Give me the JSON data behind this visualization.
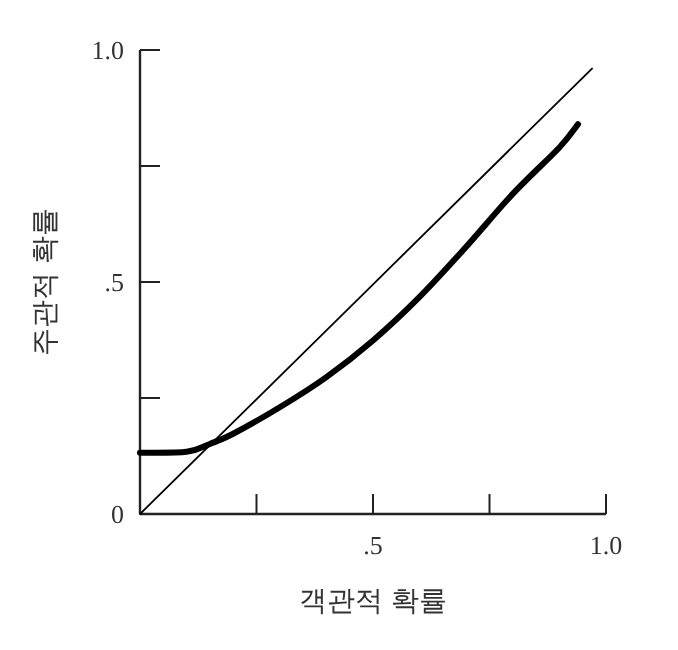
{
  "chart_data": {
    "type": "line",
    "xlabel": "객관적 확률",
    "ylabel": "주관적 확률",
    "xlim": [
      0,
      1.0
    ],
    "ylim": [
      0,
      1.0
    ],
    "xticks": [
      {
        "value": 0.25,
        "label": null
      },
      {
        "value": 0.5,
        "label": ".5"
      },
      {
        "value": 0.75,
        "label": null
      },
      {
        "value": 1.0,
        "label": "1.0"
      }
    ],
    "yticks": [
      {
        "value": 0,
        "label": "0"
      },
      {
        "value": 0.25,
        "label": null
      },
      {
        "value": 0.5,
        "label": ".5"
      },
      {
        "value": 0.75,
        "label": null
      },
      {
        "value": 1.0,
        "label": "1.0"
      }
    ],
    "grid": false,
    "marker": "none",
    "line_style": "solid",
    "series": [
      {
        "color": "#000000",
        "x": [
          0,
          0.97
        ],
        "values": [
          0,
          0.96
        ]
      },
      {
        "color": "#000000",
        "x": [
          0,
          0.1,
          0.15,
          0.2,
          0.3,
          0.4,
          0.5,
          0.6,
          0.7,
          0.8,
          0.9,
          0.94
        ],
        "values": [
          0.132,
          0.134,
          0.151,
          0.173,
          0.23,
          0.295,
          0.374,
          0.468,
          0.576,
          0.69,
          0.79,
          0.84
        ]
      }
    ]
  }
}
